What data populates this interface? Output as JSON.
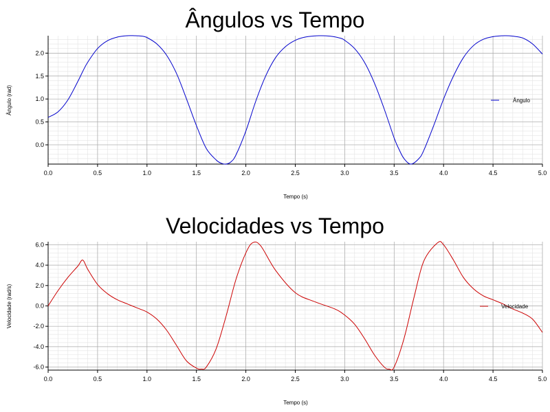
{
  "chart_data": [
    {
      "type": "line",
      "title": "Ângulos vs Tempo",
      "xlabel": "Tempo (s)",
      "ylabel": "Ângulo (rad)",
      "xlim": [
        0,
        5
      ],
      "ylim": [
        -0.42,
        2.38
      ],
      "xticks": [
        "0.0",
        "0.5",
        "1.0",
        "1.5",
        "2.0",
        "2.5",
        "3.0",
        "3.5",
        "4.0",
        "4.5",
        "5.0"
      ],
      "yticks": [
        "0.0",
        "0.5",
        "1.0",
        "1.5",
        "2.0"
      ],
      "grid": true,
      "legend_position": "right",
      "series": [
        {
          "name": "Ângulo",
          "color": "#0000cc",
          "x": [
            0.0,
            0.1,
            0.2,
            0.3,
            0.35,
            0.4,
            0.5,
            0.6,
            0.7,
            0.8,
            0.87,
            0.95,
            1.0,
            1.1,
            1.2,
            1.3,
            1.4,
            1.5,
            1.6,
            1.7,
            1.75,
            1.8,
            1.85,
            1.9,
            2.0,
            2.1,
            2.2,
            2.3,
            2.4,
            2.5,
            2.6,
            2.74,
            2.85,
            2.95,
            3.0,
            3.1,
            3.2,
            3.3,
            3.4,
            3.5,
            3.55,
            3.6,
            3.67,
            3.75,
            3.8,
            3.9,
            4.0,
            4.1,
            4.2,
            4.3,
            4.4,
            4.5,
            4.62,
            4.7,
            4.8,
            4.9,
            5.0
          ],
          "y": [
            0.6,
            0.72,
            0.98,
            1.38,
            1.6,
            1.8,
            2.1,
            2.27,
            2.35,
            2.38,
            2.38,
            2.37,
            2.34,
            2.2,
            1.95,
            1.55,
            1.0,
            0.42,
            -0.08,
            -0.33,
            -0.4,
            -0.42,
            -0.37,
            -0.22,
            0.3,
            0.95,
            1.5,
            1.9,
            2.14,
            2.28,
            2.35,
            2.38,
            2.37,
            2.33,
            2.28,
            2.1,
            1.8,
            1.35,
            0.78,
            0.15,
            -0.1,
            -0.3,
            -0.42,
            -0.3,
            -0.12,
            0.42,
            1.0,
            1.5,
            1.9,
            2.16,
            2.3,
            2.36,
            2.38,
            2.37,
            2.33,
            2.2,
            1.98
          ]
        }
      ]
    },
    {
      "type": "line",
      "title": "Velocidades vs Tempo",
      "xlabel": "Tempo (s)",
      "ylabel": "Velocidade (rad/s)",
      "xlim": [
        0,
        5
      ],
      "ylim": [
        -6.3,
        6.3
      ],
      "xticks": [
        "0.0",
        "0.5",
        "1.0",
        "1.5",
        "2.0",
        "2.5",
        "3.0",
        "3.5",
        "4.0",
        "4.5",
        "5.0"
      ],
      "yticks": [
        "6.0",
        "4.0",
        "2.0",
        "0.0",
        "-2.0",
        "-4.0",
        "-6.0"
      ],
      "grid": true,
      "legend_position": "right",
      "series": [
        {
          "name": "Velocidade",
          "color": "#cc0000",
          "x": [
            0.0,
            0.1,
            0.2,
            0.3,
            0.35,
            0.4,
            0.5,
            0.6,
            0.7,
            0.8,
            0.9,
            1.0,
            1.1,
            1.2,
            1.3,
            1.4,
            1.5,
            1.55,
            1.6,
            1.7,
            1.8,
            1.9,
            2.0,
            2.07,
            2.15,
            2.3,
            2.5,
            2.7,
            2.9,
            3.0,
            3.1,
            3.2,
            3.3,
            3.4,
            3.45,
            3.5,
            3.6,
            3.7,
            3.8,
            3.94,
            4.0,
            4.1,
            4.2,
            4.3,
            4.4,
            4.5,
            4.6,
            4.7,
            4.8,
            4.9,
            5.0
          ],
          "y": [
            0.0,
            1.5,
            2.8,
            3.9,
            4.5,
            3.6,
            2.1,
            1.2,
            0.6,
            0.2,
            -0.2,
            -0.6,
            -1.3,
            -2.4,
            -3.9,
            -5.4,
            -6.1,
            -6.2,
            -6.0,
            -4.2,
            -1.0,
            2.6,
            5.2,
            6.2,
            5.9,
            3.5,
            1.3,
            0.4,
            -0.3,
            -0.9,
            -1.8,
            -3.2,
            -4.8,
            -6.0,
            -6.2,
            -6.0,
            -3.2,
            0.8,
            4.4,
            6.2,
            6.0,
            4.5,
            2.8,
            1.7,
            1.0,
            0.6,
            0.2,
            -0.3,
            -0.7,
            -1.3,
            -2.6
          ]
        }
      ]
    }
  ]
}
